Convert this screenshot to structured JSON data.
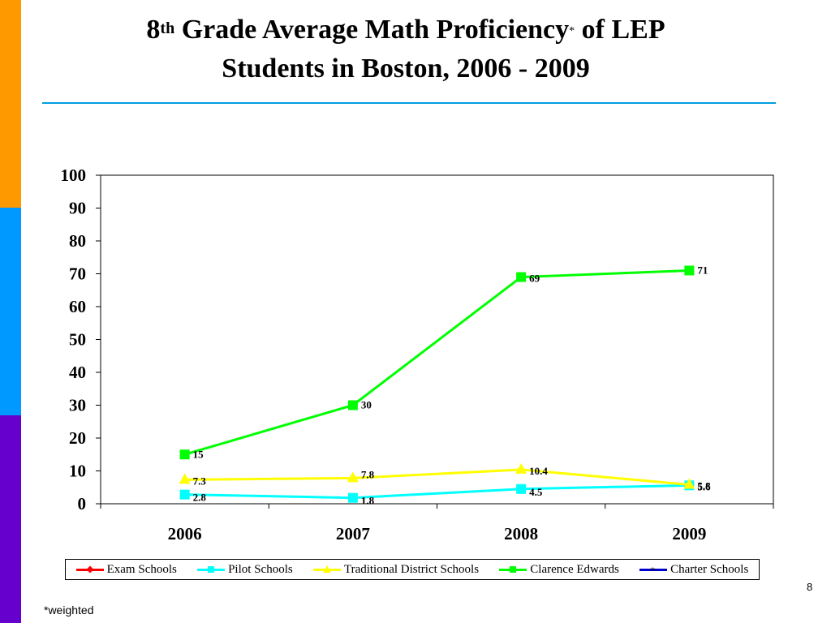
{
  "slide": {
    "title_prefix": "8",
    "title_sup": "th",
    "title_main": " Grade Average Math Proficiency",
    "title_star": "*",
    "title_suffix": " of LEP",
    "title_line2": "Students in Boston, 2006 - 2009",
    "page_number": "8",
    "footnote": "*weighted",
    "colors": {
      "stripe_top": "#ff9900",
      "stripe_mid": "#0099ff",
      "stripe_bottom": "#6600cc",
      "rule": "#00a0e0"
    }
  },
  "chart_data": {
    "type": "line",
    "categories": [
      "2006",
      "2007",
      "2008",
      "2009"
    ],
    "ylim": [
      0,
      100
    ],
    "y_ticks": [
      "0",
      "10",
      "20",
      "30",
      "40",
      "50",
      "60",
      "70",
      "80",
      "90",
      "100"
    ],
    "grid": false,
    "legend_position": "bottom",
    "series": [
      {
        "name": "Exam Schools",
        "color": "#ff0000",
        "marker": "diamond",
        "values": [
          null,
          null,
          null,
          null
        ],
        "labels": [
          "",
          "",
          "",
          ""
        ]
      },
      {
        "name": "Pilot Schools",
        "color": "#00ffff",
        "marker": "square",
        "values": [
          2.8,
          1.8,
          4.5,
          5.6
        ],
        "labels": [
          "2.8",
          "1.8",
          "4.5",
          "5.6"
        ]
      },
      {
        "name": "Traditional District Schools",
        "color": "#ffff00",
        "marker": "triangle",
        "values": [
          7.3,
          7.8,
          10.4,
          5.8
        ],
        "labels": [
          "7.3",
          "7.8",
          "10.4",
          "5.8"
        ]
      },
      {
        "name": "Clarence Edwards",
        "color": "#00ff00",
        "marker": "square",
        "values": [
          15,
          30,
          69,
          71
        ],
        "labels": [
          "15",
          "30",
          "69",
          "71"
        ]
      },
      {
        "name": "Charter Schools",
        "color": "#0000cc",
        "marker": "asterisk",
        "values": [
          null,
          null,
          null,
          null
        ],
        "labels": [
          "",
          "",
          "",
          ""
        ]
      }
    ]
  }
}
